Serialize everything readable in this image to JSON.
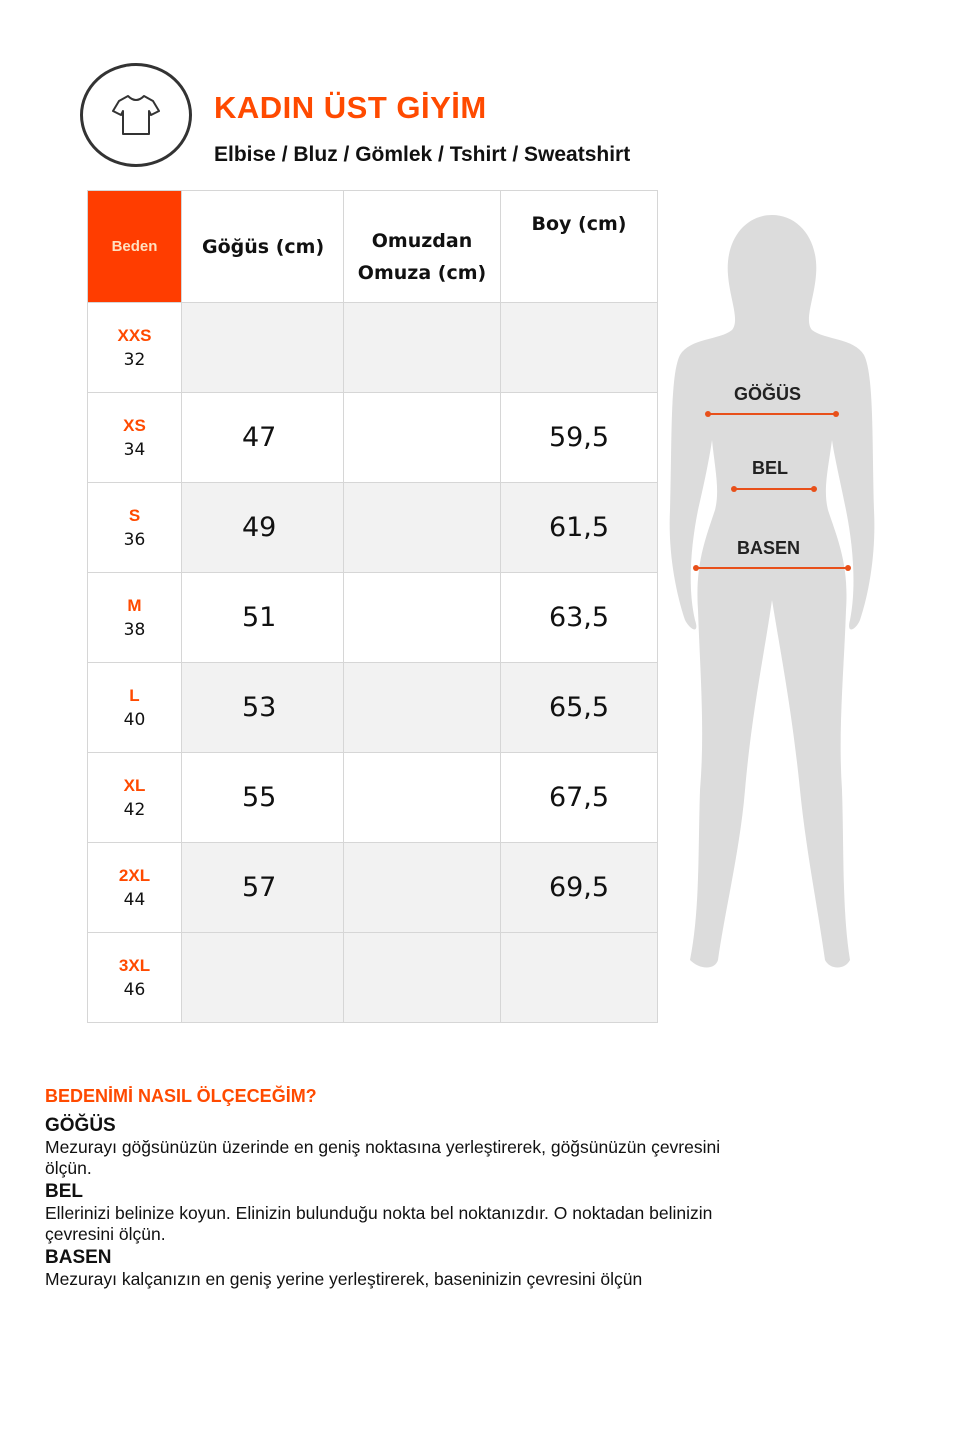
{
  "header": {
    "title": "KADIN ÜST GİYİM",
    "subtitle": "Elbise / Bluz / Gömlek / Tshirt / Sweatshirt",
    "icon": "tshirt-icon"
  },
  "table": {
    "columns": [
      "Beden",
      "Göğüs (cm)",
      "Omuzdan Omuza (cm)",
      "Boy (cm)"
    ],
    "column_omuz_line1": "Omuzdan",
    "column_omuz_line2": "Omuza (cm)",
    "rows": [
      {
        "size": "XXS",
        "num": "32",
        "gogus": "",
        "omuz": "",
        "boy": ""
      },
      {
        "size": "XS",
        "num": "34",
        "gogus": "47",
        "omuz": "",
        "boy": "59,5"
      },
      {
        "size": "S",
        "num": "36",
        "gogus": "49",
        "omuz": "",
        "boy": "61,5"
      },
      {
        "size": "M",
        "num": "38",
        "gogus": "51",
        "omuz": "",
        "boy": "63,5"
      },
      {
        "size": "L",
        "num": "40",
        "gogus": "53",
        "omuz": "",
        "boy": "65,5"
      },
      {
        "size": "XL",
        "num": "42",
        "gogus": "55",
        "omuz": "",
        "boy": "67,5"
      },
      {
        "size": "2XL",
        "num": "44",
        "gogus": "57",
        "omuz": "",
        "boy": "69,5"
      },
      {
        "size": "3XL",
        "num": "46",
        "gogus": "",
        "omuz": "",
        "boy": ""
      }
    ]
  },
  "figure": {
    "labels": [
      "GÖĞÜS",
      "BEL",
      "BASEN"
    ]
  },
  "howto": {
    "heading": "BEDENİMİ NASIL ÖLÇECEĞİM?",
    "sections": [
      {
        "title": "GÖĞÜS",
        "text": "Mezurayı göğsünüzün üzerinde en geniş noktasına yerleştirerek, göğsünüzün çevresini ölçün."
      },
      {
        "title": "BEL",
        "text": "Ellerinizi belinize koyun. Elinizin bulunduğu nokta bel noktanızdır. O noktadan belinizin çevresini ölçün."
      },
      {
        "title": "BASEN",
        "text": "Mezurayı kalçanızın en geniş yerine yerleştirerek, baseninizin çevresini ölçün"
      }
    ]
  },
  "colors": {
    "accent": "#ff4a00",
    "header_cell": "#ff3d00",
    "silhouette": "#dcdcdc"
  }
}
